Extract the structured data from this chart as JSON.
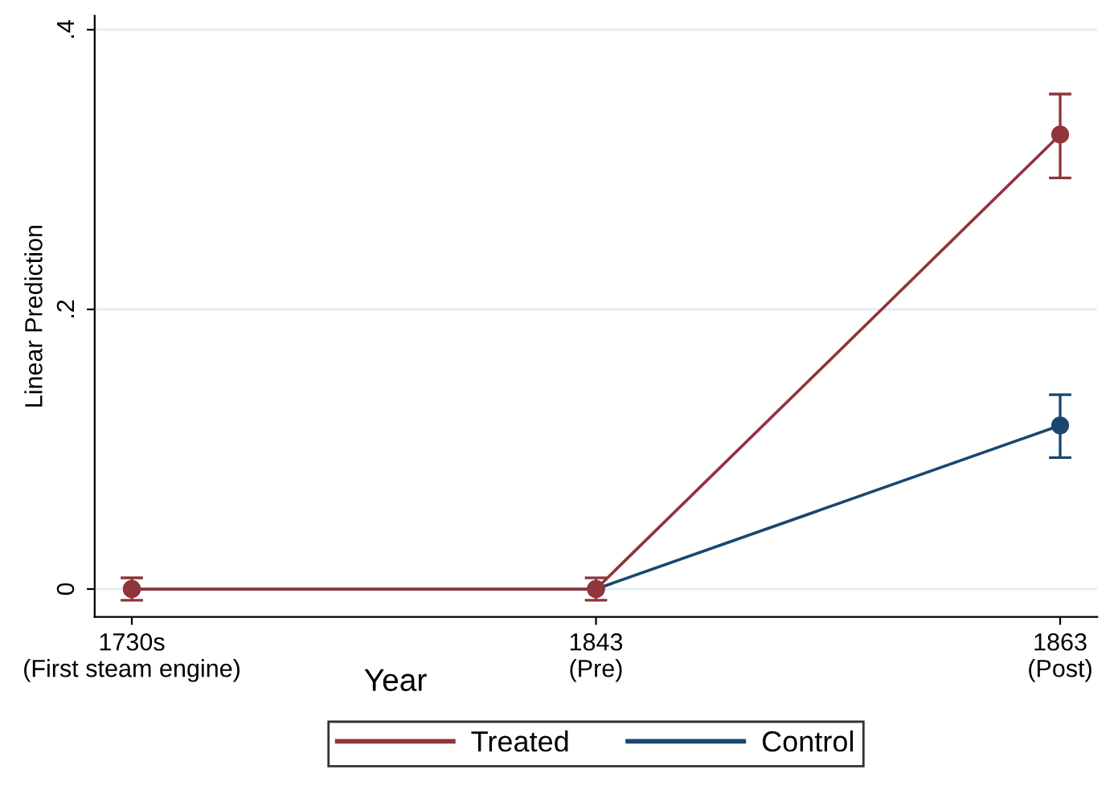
{
  "chart_data": {
    "type": "line",
    "xlabel": "Year",
    "ylabel": "Linear Prediction",
    "categories": [
      "1730s\n(First steam engine)",
      "1843\n(Pre)",
      "1863\n(Post)"
    ],
    "series": [
      {
        "name": "Treated",
        "color": "#90353b",
        "values": [
          0,
          0,
          0.325
        ],
        "errors": [
          0.008,
          0.008,
          [
            0.294,
            0.354
          ]
        ]
      },
      {
        "name": "Control",
        "color": "#1a476f",
        "values": [
          0,
          0,
          0.117
        ],
        "errors": [
          null,
          null,
          [
            0.094,
            0.139
          ]
        ]
      }
    ],
    "ylim": [
      -0.02,
      0.41
    ],
    "yticks": [
      0,
      {
        "value": 0.2,
        "label": ".2"
      },
      {
        "value": 0.4,
        "label": ".4"
      }
    ],
    "grid": "y",
    "legend": "bottom",
    "marker": "circle",
    "line_style": "solid"
  }
}
